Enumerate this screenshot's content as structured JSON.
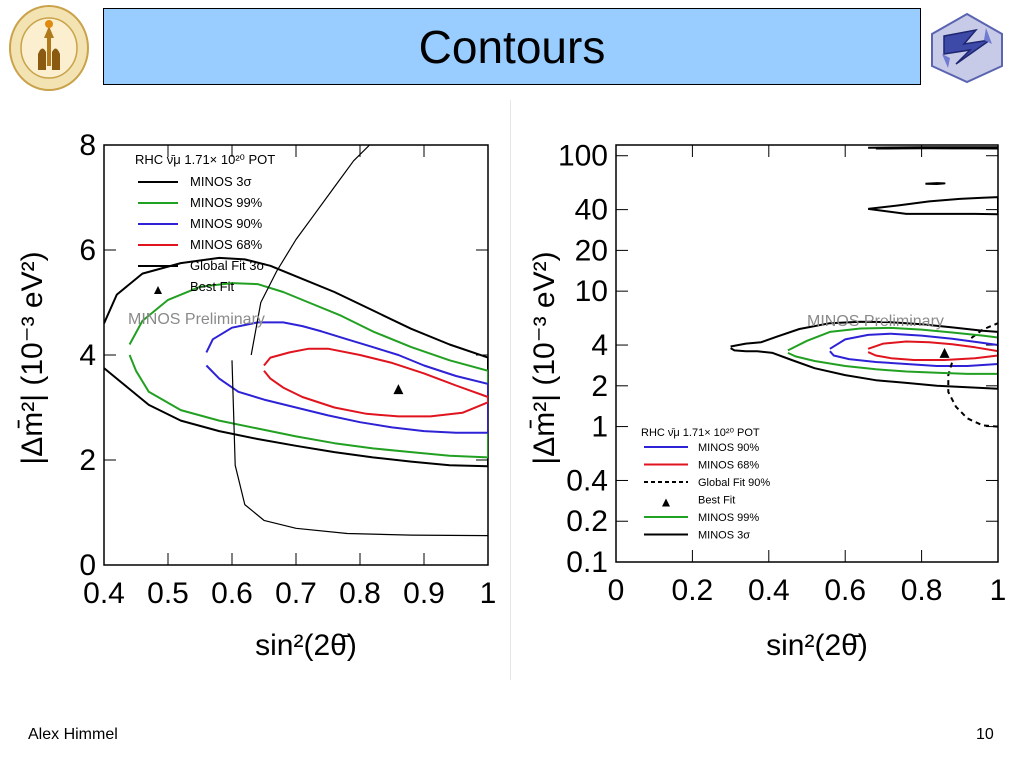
{
  "slide": {
    "title": "Contours",
    "author": "Alex Himmel",
    "page_number": "10"
  },
  "logos": {
    "left": {
      "icon": "caltech-seal-icon",
      "ring_text": "CALIFORNIA INSTITUTE OF TECHNOLOGY",
      "year": "1891"
    },
    "right": {
      "icon": "minos-logo-icon"
    }
  },
  "colors": {
    "title_bg": "#99ccff",
    "minos_3sigma": "#000000",
    "minos_99": "#22a022",
    "minos_90": "#2e22d6",
    "minos_68": "#e0141e",
    "global_fit": "#000000"
  },
  "chart_data": [
    {
      "type": "line",
      "xlabel": "sin²(2θ̄)",
      "ylabel": "|Δm̄²| (10⁻³ eV²)",
      "xlim": [
        0.4,
        1.0
      ],
      "ylim": [
        0,
        8
      ],
      "y_scale": "linear",
      "xticks": [
        "0.4",
        "0.5",
        "0.6",
        "0.7",
        "0.8",
        "0.9",
        "1"
      ],
      "yticks": [
        "0",
        "2",
        "4",
        "6",
        "8"
      ],
      "legend_position": "top-left",
      "legend_title": "RHC ν̄μ 1.71× 10²⁰ POT",
      "annotation": "MINOS Preliminary",
      "series": [
        {
          "name": "MINOS 3σ",
          "style": "solid",
          "x": [
            0.4,
            0.42,
            0.46,
            0.52,
            0.58,
            0.62,
            0.66,
            0.7,
            0.76,
            0.82,
            0.88,
            0.94,
            1.0,
            1.0,
            0.94,
            0.88,
            0.82,
            0.76,
            0.7,
            0.64,
            0.58,
            0.52,
            0.47,
            0.43,
            0.4
          ],
          "y": [
            4.6,
            5.15,
            5.55,
            5.75,
            5.85,
            5.82,
            5.7,
            5.5,
            5.2,
            4.85,
            4.5,
            4.2,
            3.95,
            1.88,
            1.9,
            1.97,
            2.05,
            2.15,
            2.27,
            2.4,
            2.55,
            2.75,
            3.05,
            3.45,
            3.75
          ]
        },
        {
          "name": "MINOS 99%",
          "style": "solid",
          "x": [
            0.44,
            0.46,
            0.5,
            0.55,
            0.6,
            0.64,
            0.68,
            0.72,
            0.77,
            0.82,
            0.88,
            0.94,
            1.0,
            1.0,
            0.94,
            0.88,
            0.82,
            0.76,
            0.7,
            0.64,
            0.58,
            0.52,
            0.47,
            0.45,
            0.44
          ],
          "y": [
            4.2,
            4.65,
            5.05,
            5.3,
            5.37,
            5.35,
            5.2,
            5.0,
            4.75,
            4.45,
            4.15,
            3.9,
            3.7,
            2.05,
            2.08,
            2.15,
            2.22,
            2.32,
            2.45,
            2.6,
            2.75,
            2.95,
            3.3,
            3.7,
            4.0
          ]
        },
        {
          "name": "MINOS 90%",
          "style": "solid",
          "x": [
            0.56,
            0.57,
            0.6,
            0.64,
            0.68,
            0.71,
            0.74,
            0.78,
            0.82,
            0.86,
            0.9,
            0.95,
            1.0,
            1.0,
            0.95,
            0.9,
            0.85,
            0.8,
            0.75,
            0.7,
            0.65,
            0.61,
            0.58,
            0.56
          ],
          "y": [
            4.05,
            4.3,
            4.52,
            4.62,
            4.62,
            4.55,
            4.45,
            4.3,
            4.15,
            4.0,
            3.8,
            3.6,
            3.45,
            2.52,
            2.52,
            2.55,
            2.62,
            2.72,
            2.85,
            3.0,
            3.15,
            3.3,
            3.55,
            3.8
          ]
        },
        {
          "name": "MINOS 68%",
          "style": "solid",
          "x": [
            0.65,
            0.66,
            0.69,
            0.72,
            0.75,
            0.8,
            0.85,
            0.9,
            0.95,
            1.0,
            1.0,
            0.96,
            0.91,
            0.86,
            0.81,
            0.76,
            0.71,
            0.68,
            0.66,
            0.65
          ],
          "y": [
            3.8,
            3.95,
            4.05,
            4.12,
            4.12,
            4.0,
            3.85,
            3.65,
            3.42,
            3.2,
            3.1,
            2.9,
            2.83,
            2.83,
            2.88,
            3.0,
            3.2,
            3.38,
            3.55,
            3.7
          ]
        },
        {
          "name": "Global Fit 3σ",
          "style": "solid",
          "x": [
            0.6,
            0.605,
            0.62,
            0.65,
            0.7,
            0.78,
            0.88,
            1.0,
            null,
            0.63,
            0.645,
            0.67,
            0.7,
            0.73,
            0.76,
            0.79,
            0.815
          ],
          "y": [
            3.9,
            1.9,
            1.15,
            0.85,
            0.7,
            0.6,
            0.57,
            0.56,
            null,
            4.0,
            5.0,
            5.6,
            6.2,
            6.7,
            7.2,
            7.7,
            8.0
          ]
        },
        {
          "name": "Best Fit",
          "style": "marker",
          "x": [
            0.86
          ],
          "y": [
            3.35
          ]
        }
      ]
    },
    {
      "type": "line",
      "xlabel": "sin²(2θ̄)",
      "ylabel": "|Δm̄²| (10⁻³ eV²)",
      "xlim": [
        0,
        1
      ],
      "ylim": [
        0.1,
        120
      ],
      "y_scale": "log",
      "xticks": [
        "0",
        "0.2",
        "0.4",
        "0.6",
        "0.8",
        "1"
      ],
      "yticks": [
        "0.1",
        "0.2",
        "0.4",
        "1",
        "2",
        "4",
        "10",
        "20",
        "40",
        "100"
      ],
      "legend_position": "bottom-left",
      "legend_title": "RHC ν̄μ 1.71× 10²⁰ POT",
      "annotation": "MINOS Preliminary",
      "series": [
        {
          "name": "MINOS 90%",
          "style": "solid",
          "x": [
            0.56,
            0.6,
            0.66,
            0.72,
            0.8,
            0.88,
            0.96,
            1.0,
            1.0,
            0.92,
            0.84,
            0.76,
            0.68,
            0.61,
            0.57,
            0.56
          ],
          "y": [
            3.75,
            4.4,
            4.75,
            4.85,
            4.7,
            4.45,
            4.15,
            4.0,
            2.9,
            2.8,
            2.8,
            2.9,
            3.0,
            3.15,
            3.35,
            3.6
          ]
        },
        {
          "name": "MINOS 68%",
          "style": "solid",
          "x": [
            0.66,
            0.7,
            0.76,
            0.82,
            0.88,
            0.94,
            1.0,
            1.0,
            0.94,
            0.86,
            0.78,
            0.72,
            0.68,
            0.66
          ],
          "y": [
            3.75,
            4.1,
            4.25,
            4.2,
            4.05,
            3.85,
            3.6,
            3.35,
            3.2,
            3.1,
            3.1,
            3.2,
            3.35,
            3.55
          ]
        },
        {
          "name": "Global Fit 90%",
          "style": "dashed",
          "x": [
            0.93,
            0.96,
            0.98,
            1.0,
            null,
            1.0,
            0.96,
            0.92,
            0.89,
            0.87,
            0.87,
            0.88
          ],
          "y": [
            4.5,
            5.2,
            5.5,
            5.8,
            null,
            1.0,
            1.02,
            1.15,
            1.4,
            1.8,
            2.4,
            3.0
          ]
        },
        {
          "name": "Best Fit",
          "style": "marker",
          "x": [
            0.86
          ],
          "y": [
            3.5
          ]
        },
        {
          "name": "MINOS 99%",
          "style": "solid",
          "x": [
            0.45,
            0.5,
            0.56,
            0.64,
            0.72,
            0.8,
            0.88,
            0.96,
            1.0,
            1.0,
            0.92,
            0.84,
            0.76,
            0.68,
            0.6,
            0.52,
            0.47,
            0.45
          ],
          "y": [
            3.65,
            4.3,
            5.0,
            5.3,
            5.35,
            5.2,
            4.95,
            4.7,
            4.55,
            2.45,
            2.45,
            2.5,
            2.55,
            2.65,
            2.8,
            3.05,
            3.3,
            3.5
          ]
        },
        {
          "name": "MINOS 3σ",
          "style": "solid",
          "x": [
            0.3,
            0.34,
            0.38,
            0.42,
            0.48,
            0.56,
            0.64,
            0.72,
            0.8,
            0.88,
            0.96,
            1.0,
            1.0,
            0.92,
            0.84,
            0.76,
            0.68,
            0.6,
            0.52,
            0.46,
            0.41,
            0.37,
            0.34,
            0.31,
            0.3,
            null,
            0.68,
            0.75,
            0.82,
            0.88,
            0.94,
            1.0,
            null,
            0.66,
            0.72,
            0.8,
            0.88,
            0.96,
            1.0,
            null,
            0.66,
            0.74,
            0.82,
            0.9,
            0.96,
            1.0,
            1.0,
            0.94,
            0.86,
            0.76,
            0.66,
            null,
            0.81,
            0.84,
            0.86,
            0.84,
            0.81
          ],
          "y": [
            3.9,
            4.1,
            4.2,
            4.6,
            5.25,
            5.8,
            5.95,
            5.9,
            5.7,
            5.4,
            5.1,
            5.0,
            1.9,
            1.95,
            2.0,
            2.1,
            2.2,
            2.4,
            2.7,
            3.1,
            3.5,
            3.6,
            3.6,
            3.65,
            3.8,
            null,
            113,
            113.3,
            113.5,
            113.3,
            113.2,
            113,
            null,
            114.5,
            115,
            115.3,
            115.4,
            115.5,
            115.6,
            null,
            40.5,
            43,
            46,
            48,
            49,
            49.5,
            37,
            37.2,
            37.2,
            37.2,
            40.5,
            null,
            62,
            62.8,
            62.5,
            61.8,
            62
          ]
        }
      ]
    }
  ]
}
